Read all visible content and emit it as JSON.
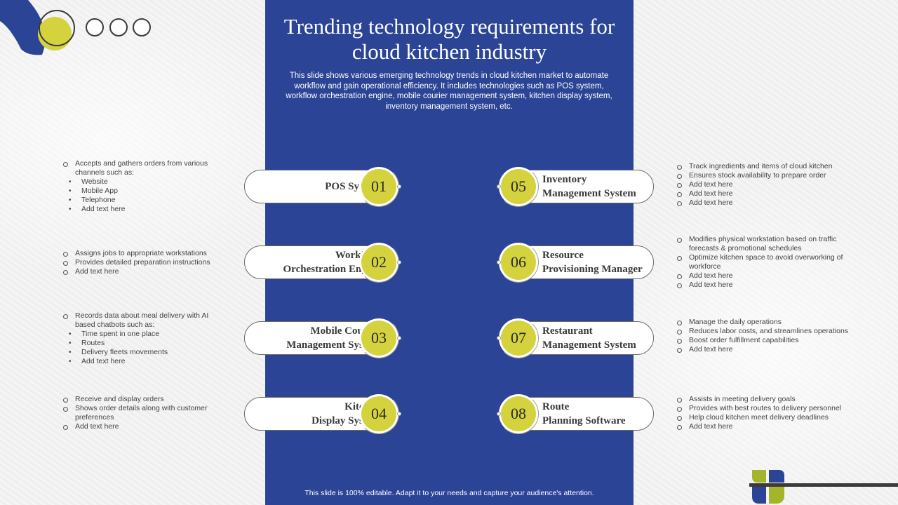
{
  "title": "Trending technology requirements for cloud kitchen industry",
  "subtitle": "This slide shows various emerging technology trends in cloud kitchen market to automate workflow and gain operational efficiency. It includes technologies such as POS system, workflow orchestration engine, mobile courier management system, kitchen display system, inventory management system, etc.",
  "footer": "This slide is 100% editable. Adapt it to your needs and capture your audience's attention.",
  "colors": {
    "panel": "#2b4496",
    "accent": "#d4d33e"
  },
  "items": [
    {
      "num": "01",
      "label_lines": [
        "POS System"
      ],
      "desc": [
        {
          "t": "Accepts and gathers orders from various channels such as:",
          "k": "c"
        },
        {
          "t": "Website",
          "k": "b"
        },
        {
          "t": "Mobile App",
          "k": "b"
        },
        {
          "t": "Telephone",
          "k": "b"
        },
        {
          "t": "Add text here",
          "k": "b"
        }
      ]
    },
    {
      "num": "02",
      "label_lines": [
        "Workflow",
        "Orchestration  Engine"
      ],
      "desc": [
        {
          "t": "Assigns jobs to appropriate workstations",
          "k": "c"
        },
        {
          "t": "Provides detailed preparation instructions",
          "k": "c"
        },
        {
          "t": "Add text here",
          "k": "c"
        }
      ]
    },
    {
      "num": "03",
      "label_lines": [
        "Mobile Courier",
        "Management System"
      ],
      "desc": [
        {
          "t": "Records data about meal delivery with AI based chatbots such as:",
          "k": "c"
        },
        {
          "t": "Time  spent in one place",
          "k": "b"
        },
        {
          "t": "Routes",
          "k": "b"
        },
        {
          "t": "Delivery fleets movements",
          "k": "b"
        },
        {
          "t": "Add text here",
          "k": "b"
        }
      ]
    },
    {
      "num": "04",
      "label_lines": [
        "Kitchen",
        "Display System"
      ],
      "desc": [
        {
          "t": "Receive and display orders",
          "k": "c"
        },
        {
          "t": "Shows order details along with customer preferences",
          "k": "c"
        },
        {
          "t": "Add text here",
          "k": "c"
        }
      ]
    },
    {
      "num": "05",
      "label_lines": [
        "Inventory",
        "Management System"
      ],
      "desc": [
        {
          "t": "Track ingredients and items of cloud kitchen",
          "k": "c"
        },
        {
          "t": "Ensures stock availability to prepare order",
          "k": "c"
        },
        {
          "t": "Add text here",
          "k": "c"
        },
        {
          "t": "Add text here",
          "k": "c"
        },
        {
          "t": "Add text here",
          "k": "c"
        }
      ]
    },
    {
      "num": "06",
      "label_lines": [
        "Resource",
        "Provisioning  Manager"
      ],
      "desc": [
        {
          "t": "Modifies physical workstation based on traffic forecasts & promotional schedules",
          "k": "c"
        },
        {
          "t": "Optimize kitchen space to avoid overworking of workforce",
          "k": "c"
        },
        {
          "t": "Add text here",
          "k": "c"
        },
        {
          "t": "Add text here",
          "k": "c"
        }
      ]
    },
    {
      "num": "07",
      "label_lines": [
        "Restaurant",
        "Management System"
      ],
      "desc": [
        {
          "t": "Manage the daily operations",
          "k": "c"
        },
        {
          "t": "Reduces labor costs, and streamlines operations",
          "k": "c"
        },
        {
          "t": "Boost order fulfillment capabilities",
          "k": "c"
        },
        {
          "t": "Add text here",
          "k": "c"
        }
      ]
    },
    {
      "num": "08",
      "label_lines": [
        "Route",
        "Planning  Software"
      ],
      "desc": [
        {
          "t": "Assists in meeting delivery goals",
          "k": "c"
        },
        {
          "t": "Provides with best routes to delivery personnel",
          "k": "c"
        },
        {
          "t": "Help cloud kitchen meet delivery deadlines",
          "k": "c"
        },
        {
          "t": "Add text here",
          "k": "c"
        }
      ]
    }
  ]
}
